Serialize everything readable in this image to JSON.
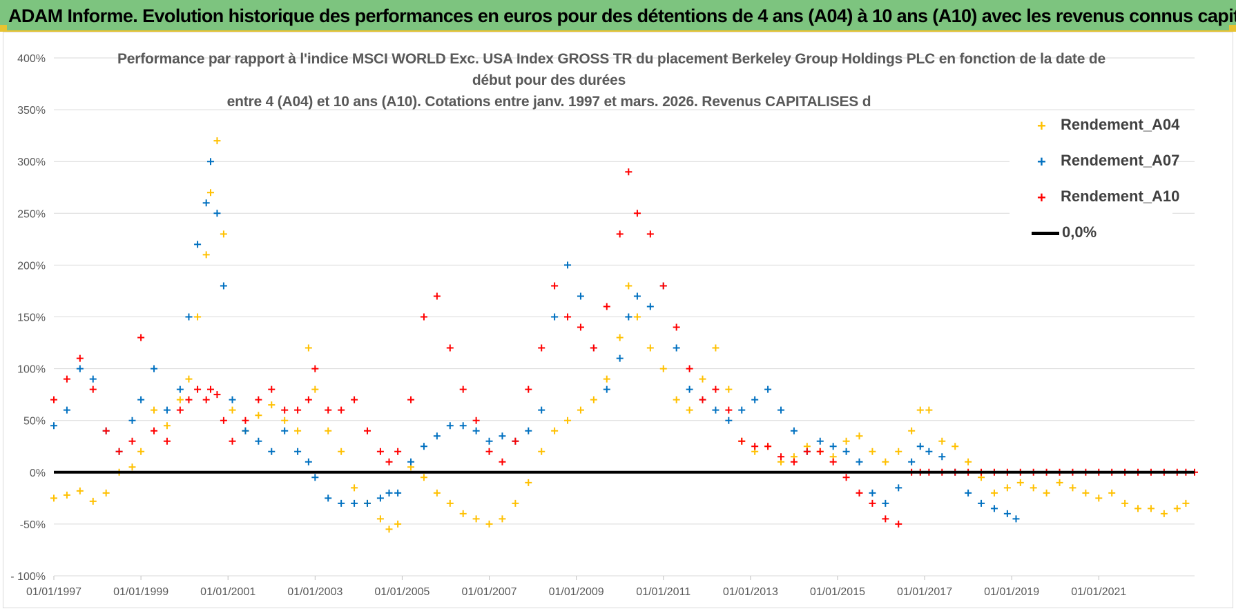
{
  "banner": {
    "title": "ADAM Informe. Evolution historique des performances en euros pour des détentions de 4 ans (A04) à 10 ans (A10) avec les revenus connus capitalisés"
  },
  "colors": {
    "banner_bg": "#7dc47f",
    "accent_border": "#e8c330",
    "series_A04": "#ffc000",
    "series_A07": "#0070c0",
    "series_A10": "#ff0000",
    "zero_line": "#000000",
    "gridline": "#d9d9d9"
  },
  "chart_data": {
    "type": "scatter",
    "title_lines": [
      "Performance par rapport à l'indice MSCI WORLD Exc. USA Index GROSS TR  du placement Berkeley Group Holdings PLC en fonction de la date de",
      "début pour des durées",
      "entre 4 (A04) et 10 ans (A10).  Cotations entre janv. 1997 et mars. 2026. Revenus CAPITALISES d"
    ],
    "xlabel": "",
    "ylabel": "",
    "y_ticks": [
      "400%",
      "350%",
      "300%",
      "250%",
      "200%",
      "150%",
      "100%",
      "50%",
      "0%",
      "-50%",
      "- 100%"
    ],
    "y_tick_values": [
      400,
      350,
      300,
      250,
      200,
      150,
      100,
      50,
      0,
      -50,
      -100
    ],
    "ylim": [
      -100,
      400
    ],
    "x_ticks": [
      "01/01/1997",
      "01/01/1999",
      "01/01/2001",
      "01/01/2003",
      "01/01/2005",
      "01/01/2007",
      "01/01/2009",
      "01/01/2011",
      "01/01/2013",
      "01/01/2015",
      "01/01/2017",
      "01/01/2019",
      "01/01/2021"
    ],
    "x_tick_years": [
      1997,
      1999,
      2001,
      2003,
      2005,
      2007,
      2009,
      2011,
      2013,
      2015,
      2017,
      2019,
      2021
    ],
    "xlim": [
      1997.0,
      2023.2
    ],
    "grid": "horizontal",
    "legend_position": "top-right",
    "series": [
      {
        "name": "Rendement_A04",
        "color": "#ffc000",
        "marker": "+",
        "x": [
          1997.0,
          1997.3,
          1997.6,
          1997.9,
          1998.2,
          1998.5,
          1998.8,
          1999.0,
          1999.3,
          1999.6,
          1999.9,
          2000.1,
          2000.3,
          2000.5,
          2000.6,
          2000.75,
          2000.9,
          2001.1,
          2001.4,
          2001.7,
          2002.0,
          2002.3,
          2002.6,
          2002.85,
          2003.0,
          2003.3,
          2003.6,
          2003.9,
          2004.2,
          2004.5,
          2004.7,
          2004.9,
          2005.2,
          2005.5,
          2005.8,
          2006.1,
          2006.4,
          2006.7,
          2007.0,
          2007.3,
          2007.6,
          2007.9,
          2008.2,
          2008.5,
          2008.8,
          2009.1,
          2009.4,
          2009.7,
          2010.0,
          2010.2,
          2010.4,
          2010.7,
          2011.0,
          2011.3,
          2011.6,
          2011.9,
          2012.2,
          2012.5,
          2012.8,
          2013.1,
          2013.4,
          2013.7,
          2014.0,
          2014.3,
          2014.6,
          2014.9,
          2015.2,
          2015.5,
          2015.8,
          2016.1,
          2016.4,
          2016.7,
          2016.9,
          2017.1,
          2017.4,
          2017.7,
          2018.0,
          2018.3,
          2018.6,
          2018.9,
          2019.2,
          2019.5,
          2019.8,
          2020.1,
          2020.4,
          2020.7,
          2021.0,
          2021.3,
          2021.6,
          2021.9,
          2022.2,
          2022.5,
          2022.8,
          2023.0
        ],
        "values": [
          -25,
          -22,
          -18,
          -28,
          -20,
          0,
          5,
          20,
          60,
          45,
          70,
          90,
          150,
          210,
          270,
          320,
          230,
          60,
          40,
          55,
          65,
          50,
          40,
          120,
          80,
          40,
          20,
          -15,
          -30,
          -45,
          -55,
          -50,
          5,
          -5,
          -20,
          -30,
          -40,
          -45,
          -50,
          -45,
          -30,
          -10,
          20,
          40,
          50,
          60,
          70,
          90,
          130,
          180,
          150,
          120,
          100,
          70,
          60,
          90,
          120,
          80,
          30,
          20,
          25,
          10,
          15,
          25,
          20,
          15,
          30,
          35,
          20,
          10,
          20,
          40,
          60,
          60,
          30,
          25,
          10,
          -5,
          -20,
          -15,
          -10,
          -15,
          -20,
          -10,
          -15,
          -20,
          -25,
          -20,
          -30,
          -35,
          -35,
          -40,
          -35,
          -30
        ]
      },
      {
        "name": "Rendement_A07",
        "color": "#0070c0",
        "marker": "+",
        "x": [
          1997.0,
          1997.3,
          1997.6,
          1997.9,
          1998.2,
          1998.5,
          1998.8,
          1999.0,
          1999.3,
          1999.6,
          1999.9,
          2000.1,
          2000.3,
          2000.5,
          2000.6,
          2000.75,
          2000.9,
          2001.1,
          2001.4,
          2001.7,
          2002.0,
          2002.3,
          2002.6,
          2002.85,
          2003.0,
          2003.3,
          2003.6,
          2003.9,
          2004.2,
          2004.5,
          2004.7,
          2004.9,
          2005.2,
          2005.5,
          2005.8,
          2006.1,
          2006.4,
          2006.7,
          2007.0,
          2007.3,
          2007.6,
          2007.9,
          2008.2,
          2008.5,
          2008.8,
          2009.1,
          2009.4,
          2009.7,
          2010.0,
          2010.2,
          2010.4,
          2010.7,
          2011.0,
          2011.3,
          2011.6,
          2011.9,
          2012.2,
          2012.5,
          2012.8,
          2013.1,
          2013.4,
          2013.7,
          2014.0,
          2014.3,
          2014.6,
          2014.9,
          2015.2,
          2015.5,
          2015.8,
          2016.1,
          2016.4,
          2016.7,
          2016.9,
          2017.1,
          2017.4,
          2017.7,
          2018.0,
          2018.3,
          2018.6,
          2018.9,
          2019.1
        ],
        "values": [
          45,
          60,
          100,
          90,
          40,
          20,
          50,
          70,
          100,
          60,
          80,
          150,
          220,
          260,
          300,
          250,
          180,
          70,
          40,
          30,
          20,
          40,
          20,
          10,
          -5,
          -25,
          -30,
          -30,
          -30,
          -25,
          -20,
          -20,
          10,
          25,
          35,
          45,
          45,
          40,
          30,
          35,
          30,
          40,
          60,
          150,
          200,
          170,
          120,
          80,
          110,
          150,
          170,
          160,
          180,
          120,
          80,
          70,
          60,
          50,
          60,
          70,
          80,
          60,
          40,
          20,
          30,
          25,
          20,
          10,
          -20,
          -30,
          -15,
          10,
          25,
          20,
          15,
          0,
          -20,
          -30,
          -35,
          -40,
          -45
        ]
      },
      {
        "name": "Rendement_A10",
        "color": "#ff0000",
        "marker": "+",
        "x": [
          1997.0,
          1997.3,
          1997.6,
          1997.9,
          1998.2,
          1998.5,
          1998.8,
          1999.0,
          1999.3,
          1999.6,
          1999.9,
          2000.1,
          2000.3,
          2000.5,
          2000.6,
          2000.75,
          2000.9,
          2001.1,
          2001.4,
          2001.7,
          2002.0,
          2002.3,
          2002.6,
          2002.85,
          2003.0,
          2003.3,
          2003.6,
          2003.9,
          2004.2,
          2004.5,
          2004.7,
          2004.9,
          2005.2,
          2005.5,
          2005.8,
          2006.1,
          2006.4,
          2006.7,
          2007.0,
          2007.3,
          2007.6,
          2007.9,
          2008.2,
          2008.5,
          2008.8,
          2009.1,
          2009.4,
          2009.7,
          2010.0,
          2010.2,
          2010.4,
          2010.7,
          2011.0,
          2011.3,
          2011.6,
          2011.9,
          2012.2,
          2012.5,
          2012.8,
          2013.1,
          2013.4,
          2013.7,
          2014.0,
          2014.3,
          2014.6,
          2014.9,
          2015.2,
          2015.5,
          2015.8,
          2016.1,
          2016.4,
          2016.7,
          2016.9,
          2017.1,
          2017.4,
          2017.7,
          2018.0,
          2018.3,
          2018.6,
          2018.9,
          2019.2,
          2019.5,
          2019.8,
          2020.1,
          2020.4,
          2020.7,
          2021.0,
          2021.3,
          2021.6,
          2021.9,
          2022.2,
          2022.5,
          2022.8,
          2023.0,
          2023.2
        ],
        "values": [
          70,
          90,
          110,
          80,
          40,
          20,
          30,
          130,
          40,
          30,
          60,
          70,
          80,
          70,
          80,
          75,
          50,
          30,
          50,
          70,
          80,
          60,
          60,
          70,
          100,
          60,
          60,
          70,
          40,
          20,
          10,
          20,
          70,
          150,
          170,
          120,
          80,
          50,
          20,
          10,
          30,
          80,
          120,
          180,
          150,
          140,
          120,
          160,
          230,
          290,
          250,
          230,
          180,
          140,
          100,
          70,
          80,
          60,
          30,
          25,
          25,
          15,
          10,
          20,
          20,
          10,
          -5,
          -20,
          -30,
          -45,
          -50,
          0,
          0,
          0,
          0,
          0,
          0,
          0,
          0,
          0,
          0,
          0,
          0,
          0,
          0,
          0,
          0,
          0,
          0,
          0,
          0,
          0,
          0,
          0,
          0
        ]
      },
      {
        "name": "0,0%",
        "color": "#000000",
        "marker": "line",
        "x": [
          1997.0,
          2023.2
        ],
        "values": [
          0,
          0
        ]
      }
    ]
  }
}
